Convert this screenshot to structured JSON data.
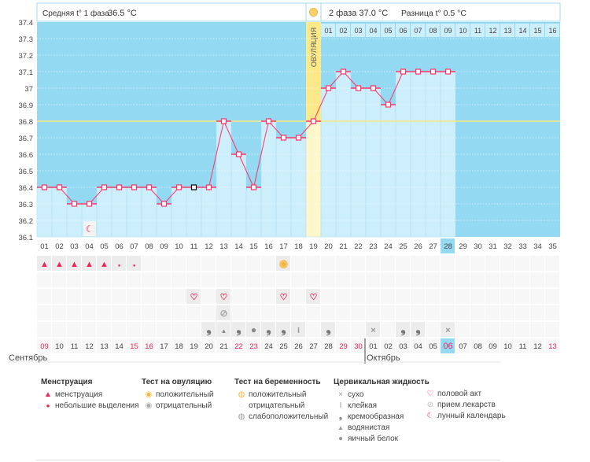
{
  "header": {
    "unit": "°C",
    "phase1": "Средняя t° 1 фаза",
    "phase1_value": "36.5 °C",
    "phase2": "2 фаза 37.0 °C",
    "diff": "Разница t° 0.5 °C",
    "ovulation_label": "ОВУЛЯЦИЯ"
  },
  "chart_data": {
    "type": "bar",
    "ylabel": "°C",
    "ylim": [
      36.1,
      37.4
    ],
    "yticks": [
      "36.1",
      "36.2",
      "36.3",
      "36.4",
      "36.5",
      "36.6",
      "36.7",
      "36.8",
      "36.9",
      "37",
      "37.1",
      "37.2",
      "37.3",
      "37.4"
    ],
    "coverline": 36.8,
    "ovulation_day": 19,
    "current_day": 28,
    "days": [
      "01",
      "02",
      "03",
      "04",
      "05",
      "06",
      "07",
      "08",
      "09",
      "10",
      "11",
      "12",
      "13",
      "14",
      "15",
      "16",
      "17",
      "18",
      "19",
      "20",
      "21",
      "22",
      "23",
      "24",
      "25",
      "26",
      "27",
      "28",
      "29",
      "30",
      "31",
      "32",
      "33",
      "34",
      "35"
    ],
    "temps": [
      36.4,
      36.4,
      36.3,
      36.3,
      36.4,
      36.4,
      36.4,
      36.4,
      36.3,
      36.4,
      36.4,
      36.4,
      36.8,
      36.6,
      36.4,
      36.8,
      36.7,
      36.7,
      36.8,
      37.0,
      37.1,
      37.0,
      37.0,
      36.9,
      37.1,
      37.1,
      37.1,
      37.1,
      null,
      null,
      null,
      null,
      null,
      null,
      null
    ],
    "luteal_days": [
      "01",
      "02",
      "03",
      "04",
      "05",
      "06",
      "07",
      "08",
      "09",
      "10",
      "11",
      "12",
      "13",
      "14",
      "15",
      "16"
    ],
    "dates": [
      "09",
      "10",
      "11",
      "12",
      "13",
      "14",
      "15",
      "16",
      "17",
      "18",
      "19",
      "20",
      "21",
      "22",
      "23",
      "24",
      "25",
      "26",
      "27",
      "28",
      "29",
      "30",
      "01",
      "02",
      "03",
      "04",
      "05",
      "06",
      "07",
      "08",
      "09",
      "10",
      "11",
      "12",
      "13"
    ],
    "weekend_idx": [
      0,
      6,
      7,
      13,
      14,
      20,
      21,
      27,
      34
    ],
    "months": [
      "Сентябрь",
      "Октябрь"
    ]
  },
  "markers": {
    "row1": {
      "1": "menstruation",
      "2": "menstruation",
      "3": "menstruation",
      "4": "menstruation",
      "5": "menstruation",
      "6": "spotting",
      "7": "spotting",
      "17": "ovulation-positive"
    },
    "row3": {
      "11": "heart",
      "13": "heart",
      "17": "heart",
      "19": "heart"
    },
    "row4": {
      "13": "pill"
    },
    "row5": {
      "12": "creamy",
      "13": "watery",
      "14": "creamy",
      "15": "eggwhite",
      "16": "creamy",
      "17": "creamy",
      "18": "sticky",
      "20": "creamy",
      "23": "dry",
      "25": "creamy",
      "26": "creamy",
      "28": "dry"
    },
    "moon_day": 4
  },
  "legend": {
    "menstr": {
      "title": "Менструация",
      "items": [
        "менструация",
        "небольшие выделения"
      ]
    },
    "ovtest": {
      "title": "Тест на овуляцию",
      "items": [
        "положительный",
        "отрицательный"
      ]
    },
    "preg": {
      "title": "Тест на беременность",
      "items": [
        "положительный",
        "отрицательный",
        "слабоположительный"
      ]
    },
    "fluid": {
      "title": "Цервикальная жидкость",
      "items": [
        "сухо",
        "клейкая",
        "кремообразная",
        "водянистая",
        "яичный белок"
      ]
    },
    "other": {
      "items": [
        "половой акт",
        "прием лекарств",
        "лунный календарь"
      ]
    }
  },
  "colors": {
    "dark": "#93d9f2",
    "light": "#cdeefb",
    "line": "#ff3366",
    "ovu": "#fde98a",
    "pink": "#ee2255"
  }
}
